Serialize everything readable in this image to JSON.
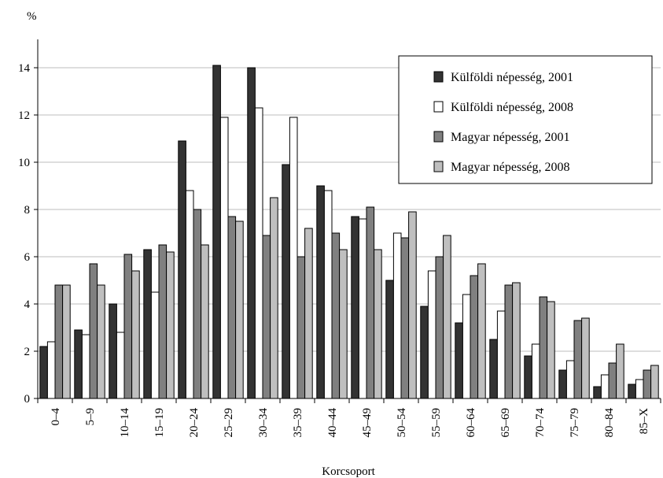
{
  "chart_data": {
    "type": "bar",
    "ylabel": "%",
    "xlabel": "Korcsoport",
    "ylim": [
      0,
      15
    ],
    "yticks": [
      0,
      2,
      4,
      6,
      8,
      10,
      12,
      14
    ],
    "grid": "horizontal",
    "legend_position": "top-right",
    "categories": [
      "0–4",
      "5–9",
      "10–14",
      "15–19",
      "20–24",
      "25–29",
      "30–34",
      "35–39",
      "40–44",
      "45–49",
      "50–54",
      "55–59",
      "60–64",
      "65–69",
      "70–74",
      "75–79",
      "80–84",
      "85–X"
    ],
    "series": [
      {
        "name": "Külföldi népesség, 2001",
        "color": "#333333",
        "values": [
          2.2,
          2.9,
          4.0,
          6.3,
          10.9,
          14.1,
          14.0,
          9.9,
          9.0,
          7.7,
          5.0,
          3.9,
          3.2,
          2.5,
          1.8,
          1.2,
          0.5,
          0.6
        ]
      },
      {
        "name": "Külföldi népesség, 2008",
        "color": "#ffffff",
        "values": [
          2.4,
          2.7,
          2.8,
          4.5,
          8.8,
          11.9,
          12.3,
          11.9,
          8.8,
          7.6,
          7.0,
          5.4,
          4.4,
          3.7,
          2.3,
          1.6,
          1.0,
          0.8
        ]
      },
      {
        "name": "Magyar népesség, 2001",
        "color": "#808080",
        "values": [
          4.8,
          5.7,
          6.1,
          6.5,
          8.0,
          7.7,
          6.9,
          6.0,
          7.0,
          8.1,
          6.8,
          6.0,
          5.2,
          4.8,
          4.3,
          3.3,
          1.5,
          1.2
        ]
      },
      {
        "name": "Magyar népesség, 2008",
        "color": "#bfbfbf",
        "values": [
          4.8,
          4.8,
          5.4,
          6.2,
          6.5,
          7.5,
          8.5,
          7.2,
          6.3,
          6.3,
          7.9,
          6.9,
          5.7,
          4.9,
          4.1,
          3.4,
          2.3,
          1.4
        ]
      }
    ]
  }
}
